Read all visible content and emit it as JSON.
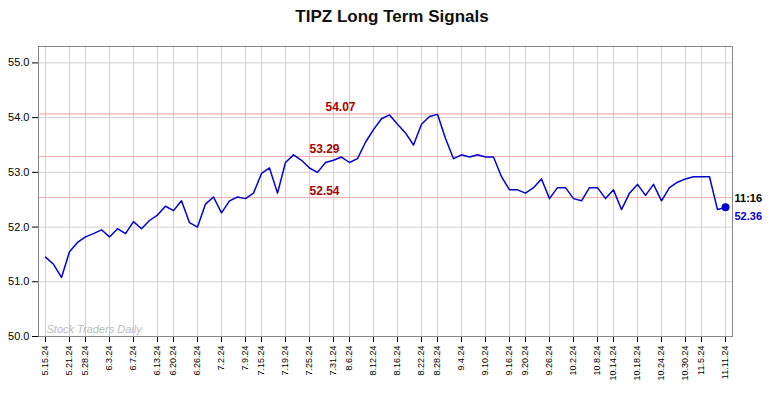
{
  "chart_data": {
    "type": "line",
    "title": "TIPZ Long Term Signals",
    "categories": [
      "5.15.24",
      null,
      null,
      "5.21.24",
      null,
      "5.28.24",
      null,
      null,
      "6.3.24",
      null,
      null,
      "6.7.24",
      null,
      null,
      "6.13.24",
      null,
      "6.20.24",
      null,
      null,
      "6.26.24",
      null,
      null,
      "7.2.24",
      null,
      null,
      "7.9.24",
      null,
      "7.15.24",
      null,
      null,
      "7.19.24",
      null,
      null,
      "7.25.24",
      null,
      null,
      "7.31.24",
      null,
      "8.6.24",
      null,
      null,
      "8.12.24",
      null,
      null,
      "8.16.24",
      null,
      null,
      "8.22.24",
      null,
      "8.28.24",
      null,
      null,
      "9.4.24",
      null,
      null,
      "9.10.24",
      null,
      null,
      "9.16.24",
      null,
      "9.20.24",
      null,
      null,
      "9.26.24",
      null,
      null,
      "10.2.24",
      null,
      null,
      "10.8.24",
      null,
      "10.14.24",
      null,
      null,
      "10.18.24",
      null,
      null,
      "10.24.24",
      null,
      null,
      "10.30.24",
      null,
      "11.5.24",
      null,
      null,
      "11.11.24"
    ],
    "values": [
      51.45,
      51.32,
      51.08,
      51.55,
      51.72,
      51.82,
      51.88,
      51.95,
      51.82,
      51.97,
      51.88,
      52.1,
      51.97,
      52.12,
      52.22,
      52.38,
      52.3,
      52.48,
      52.08,
      52.0,
      52.42,
      52.55,
      52.26,
      52.48,
      52.55,
      52.52,
      52.62,
      52.98,
      53.08,
      52.62,
      53.18,
      53.32,
      53.22,
      53.08,
      53.0,
      53.18,
      53.22,
      53.28,
      53.18,
      53.25,
      53.55,
      53.78,
      53.98,
      54.05,
      53.88,
      53.72,
      53.5,
      53.88,
      54.02,
      54.06,
      53.62,
      53.25,
      53.32,
      53.28,
      53.32,
      53.28,
      53.28,
      52.92,
      52.68,
      52.68,
      52.62,
      52.72,
      52.88,
      52.52,
      52.72,
      52.72,
      52.52,
      52.48,
      52.72,
      52.72,
      52.52,
      52.68,
      52.32,
      52.62,
      52.78,
      52.58,
      52.78,
      52.48,
      52.72,
      52.82,
      52.88,
      52.92,
      52.92,
      52.92,
      52.32,
      52.36
    ],
    "color": "#0000cc",
    "ylim": [
      50,
      55.3
    ],
    "yticks": [
      50,
      51,
      52,
      53,
      54,
      55
    ],
    "grid": true,
    "reference_lines": [
      {
        "value": 54.07,
        "label": "54.07",
        "color": "#f5a0a0",
        "label_color": "#aa0000"
      },
      {
        "value": 53.29,
        "label": "53.29",
        "color": "#f5a0a0",
        "label_color": "#aa0000"
      },
      {
        "value": 52.54,
        "label": "52.54",
        "color": "#f5a0a0",
        "label_color": "#aa0000"
      }
    ],
    "end_labels": [
      {
        "text": "11:16",
        "color": "#000000"
      },
      {
        "text": "52.36",
        "color": "#0000cc"
      }
    ],
    "watermark": {
      "text": "Stock Traders Daily",
      "color": "#bbbbbb"
    }
  }
}
